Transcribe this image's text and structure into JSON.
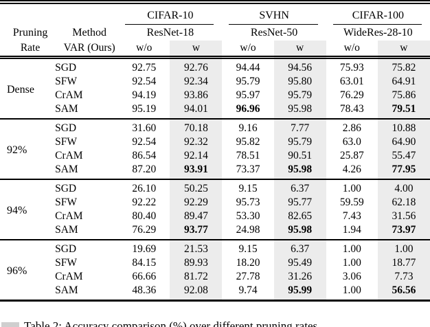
{
  "table": {
    "header": {
      "col1_line1": "Pruning",
      "col1_line2": "Rate",
      "col2_line1": "Method",
      "col2_line2": "VAR (Ours)",
      "groups": [
        {
          "dataset": "CIFAR-10",
          "model": "ResNet-18"
        },
        {
          "dataset": "SVHN",
          "model": "ResNet-50"
        },
        {
          "dataset": "CIFAR-100",
          "model": "WideRes-28-10"
        }
      ],
      "subcols": [
        "w/o",
        "w"
      ]
    },
    "highlight_color": "#ececec",
    "blocks": [
      {
        "rate": "Dense",
        "rows": [
          {
            "method": "SGD",
            "values": [
              "92.75",
              "92.76",
              "94.44",
              "94.56",
              "75.93",
              "75.82"
            ],
            "bold": []
          },
          {
            "method": "SFW",
            "values": [
              "92.54",
              "92.34",
              "95.79",
              "95.80",
              "63.01",
              "64.91"
            ],
            "bold": []
          },
          {
            "method": "CrAM",
            "values": [
              "94.19",
              "93.86",
              "95.97",
              "95.79",
              "76.29",
              "75.86"
            ],
            "bold": []
          },
          {
            "method": "SAM",
            "values": [
              "95.19",
              "94.01",
              "96.96",
              "95.98",
              "78.43",
              "79.51"
            ],
            "bold": [
              2,
              5
            ]
          }
        ]
      },
      {
        "rate": "92%",
        "rows": [
          {
            "method": "SGD",
            "values": [
              "31.60",
              "70.18",
              "9.16",
              "7.77",
              "2.86",
              "10.88"
            ],
            "bold": []
          },
          {
            "method": "SFW",
            "values": [
              "92.54",
              "92.32",
              "95.82",
              "95.79",
              "63.0",
              "64.90"
            ],
            "bold": []
          },
          {
            "method": "CrAM",
            "values": [
              "86.54",
              "92.14",
              "78.51",
              "90.51",
              "25.87",
              "55.47"
            ],
            "bold": []
          },
          {
            "method": "SAM",
            "values": [
              "87.20",
              "93.91",
              "73.37",
              "95.98",
              "4.26",
              "77.95"
            ],
            "bold": [
              1,
              3,
              5
            ]
          }
        ]
      },
      {
        "rate": "94%",
        "rows": [
          {
            "method": "SGD",
            "values": [
              "26.10",
              "50.25",
              "9.15",
              "6.37",
              "1.00",
              "4.00"
            ],
            "bold": []
          },
          {
            "method": "SFW",
            "values": [
              "92.22",
              "92.29",
              "95.73",
              "95.77",
              "59.59",
              "62.18"
            ],
            "bold": []
          },
          {
            "method": "CrAM",
            "values": [
              "80.40",
              "89.47",
              "53.30",
              "82.65",
              "7.43",
              "31.56"
            ],
            "bold": []
          },
          {
            "method": "SAM",
            "values": [
              "76.29",
              "93.77",
              "24.98",
              "95.98",
              "1.94",
              "73.97"
            ],
            "bold": [
              1,
              3,
              5
            ]
          }
        ]
      },
      {
        "rate": "96%",
        "rows": [
          {
            "method": "SGD",
            "values": [
              "19.69",
              "21.53",
              "9.15",
              "6.37",
              "1.00",
              "1.00"
            ],
            "bold": []
          },
          {
            "method": "SFW",
            "values": [
              "84.15",
              "89.93",
              "18.20",
              "95.49",
              "1.00",
              "18.77"
            ],
            "bold": []
          },
          {
            "method": "CrAM",
            "values": [
              "66.66",
              "81.72",
              "27.78",
              "31.26",
              "3.06",
              "7.73"
            ],
            "bold": []
          },
          {
            "method": "SAM",
            "values": [
              "48.36",
              "92.08",
              "9.74",
              "95.99",
              "1.00",
              "56.56"
            ],
            "bold": [
              3,
              5
            ]
          }
        ]
      }
    ]
  },
  "caption": {
    "text": "Table 2: Accuracy comparison (%) over different pruning rates."
  }
}
